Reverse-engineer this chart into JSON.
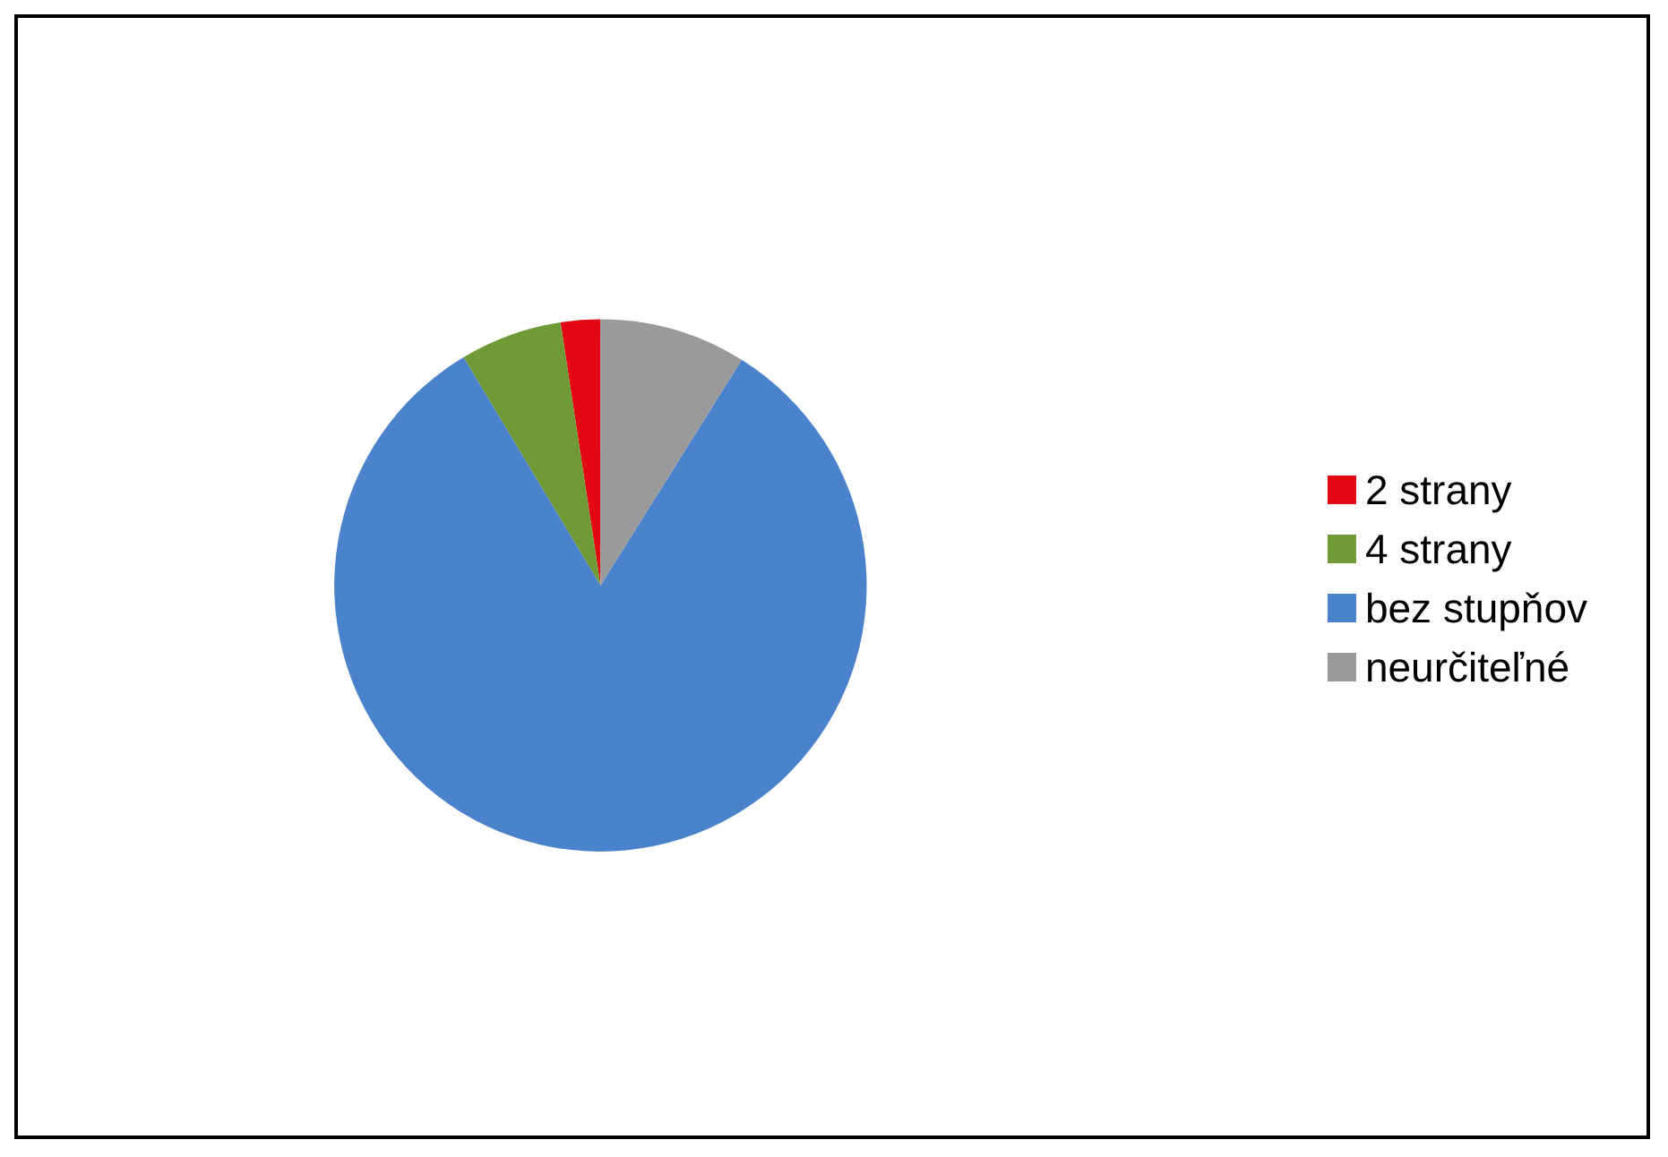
{
  "chart_data": {
    "type": "pie",
    "categories": [
      "2 strany",
      "4 strany",
      "bez stupňov",
      "neurčiteľné"
    ],
    "values": [
      2.4,
      6.2,
      82.5,
      8.9
    ],
    "colors": [
      "#e30613",
      "#6f9a35",
      "#4a82cc",
      "#9a9a9a"
    ],
    "legend": "right"
  }
}
